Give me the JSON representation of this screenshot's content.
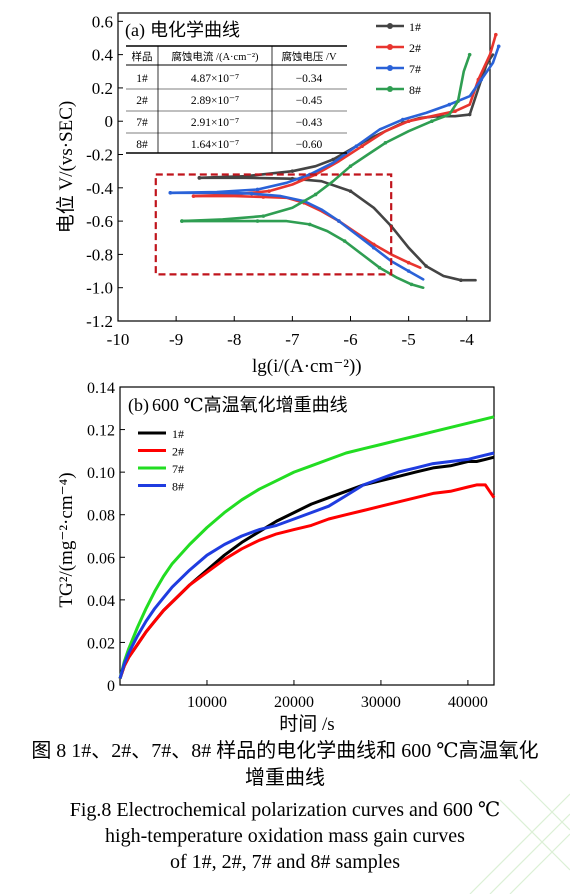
{
  "chart_data": [
    {
      "type": "line",
      "panel": "(a)",
      "title": "电化学曲线",
      "xlabel": "lg(i/(A·cm⁻²))",
      "ylabel": "电位 V/(vs·SEC)",
      "xlim": [
        -10,
        -3.6
      ],
      "ylim": [
        -1.2,
        0.65
      ],
      "xticks": [
        "-10",
        "-9",
        "-8",
        "-7",
        "-6",
        "-5",
        "-4"
      ],
      "yticks": [
        "-1.2",
        "-1.0",
        "-0.8",
        "-0.6",
        "-0.4",
        "-0.2",
        "0",
        "0.2",
        "0.4",
        "0.6"
      ],
      "legend_position": "top-right",
      "highlight_box": {
        "x_range": [
          -9.35,
          -5.3
        ],
        "y_range": [
          -0.92,
          -0.32
        ],
        "style": "red dashed rectangle"
      },
      "series": [
        {
          "name": "1#",
          "color": "#444444",
          "x": [
            -8.6,
            -7.8,
            -7.0,
            -6.5,
            -6.0,
            -5.6,
            -5.3,
            -5.0,
            -4.7,
            -4.4,
            -4.1,
            -3.85
          ],
          "y": [
            -0.34,
            -0.34,
            -0.345,
            -0.36,
            -0.42,
            -0.52,
            -0.63,
            -0.76,
            -0.87,
            -0.93,
            -0.955,
            -0.955
          ]
        },
        {
          "name": "1#",
          "color": "#444444",
          "x": [
            -8.6,
            -7.8,
            -7.0,
            -6.6,
            -6.3,
            -6.0,
            -5.7,
            -5.4,
            -5.1,
            -4.8,
            -4.5,
            -4.2,
            -3.95,
            -3.75,
            -3.65,
            -3.55
          ],
          "y": [
            -0.34,
            -0.33,
            -0.3,
            -0.27,
            -0.23,
            -0.17,
            -0.11,
            -0.06,
            -0.01,
            0.02,
            0.03,
            0.03,
            0.04,
            0.25,
            0.35,
            0.4
          ]
        },
        {
          "name": "2#",
          "color": "#e8352f",
          "x": [
            -8.7,
            -8.0,
            -7.5,
            -7.1,
            -6.8,
            -6.5,
            -6.2,
            -5.9,
            -5.6,
            -5.3,
            -5.0,
            -4.8
          ],
          "y": [
            -0.45,
            -0.45,
            -0.455,
            -0.46,
            -0.49,
            -0.54,
            -0.6,
            -0.67,
            -0.74,
            -0.8,
            -0.85,
            -0.88
          ]
        },
        {
          "name": "2#",
          "color": "#e8352f",
          "x": [
            -8.7,
            -8.0,
            -7.4,
            -7.0,
            -6.6,
            -6.2,
            -5.8,
            -5.4,
            -5.0,
            -4.6,
            -4.2,
            -3.95,
            -3.8,
            -3.6,
            -3.5
          ],
          "y": [
            -0.45,
            -0.44,
            -0.42,
            -0.38,
            -0.32,
            -0.24,
            -0.15,
            -0.06,
            0.0,
            0.03,
            0.06,
            0.1,
            0.25,
            0.4,
            0.52
          ]
        },
        {
          "name": "7#",
          "color": "#2a62d8",
          "x": [
            -9.1,
            -8.3,
            -7.7,
            -7.2,
            -6.8,
            -6.5,
            -6.2,
            -5.9,
            -5.6,
            -5.3,
            -5.0,
            -4.75
          ],
          "y": [
            -0.43,
            -0.43,
            -0.435,
            -0.45,
            -0.48,
            -0.53,
            -0.6,
            -0.68,
            -0.76,
            -0.84,
            -0.9,
            -0.95
          ]
        },
        {
          "name": "7#",
          "color": "#2a62d8",
          "x": [
            -9.1,
            -8.3,
            -7.6,
            -7.1,
            -6.7,
            -6.3,
            -5.9,
            -5.5,
            -5.1,
            -4.7,
            -4.3,
            -3.95,
            -3.75,
            -3.55,
            -3.45
          ],
          "y": [
            -0.43,
            -0.425,
            -0.41,
            -0.37,
            -0.32,
            -0.25,
            -0.15,
            -0.05,
            0.01,
            0.05,
            0.1,
            0.15,
            0.25,
            0.35,
            0.45
          ]
        },
        {
          "name": "8#",
          "color": "#2f9e52",
          "x": [
            -8.9,
            -8.2,
            -7.6,
            -7.1,
            -6.7,
            -6.4,
            -6.1,
            -5.8,
            -5.5,
            -5.2,
            -4.95,
            -4.75
          ],
          "y": [
            -0.6,
            -0.6,
            -0.6,
            -0.6,
            -0.62,
            -0.66,
            -0.72,
            -0.8,
            -0.88,
            -0.94,
            -0.98,
            -1.0
          ]
        },
        {
          "name": "8#",
          "color": "#2f9e52",
          "x": [
            -8.9,
            -8.2,
            -7.5,
            -7.0,
            -6.6,
            -6.3,
            -6.0,
            -5.7,
            -5.4,
            -5.0,
            -4.6,
            -4.3,
            -4.15,
            -4.05,
            -3.95
          ],
          "y": [
            -0.6,
            -0.59,
            -0.57,
            -0.52,
            -0.44,
            -0.36,
            -0.27,
            -0.2,
            -0.13,
            -0.06,
            0.0,
            0.04,
            0.12,
            0.3,
            0.4
          ]
        }
      ],
      "table": {
        "headers": [
          "样品",
          "腐蚀电流 /(A·cm⁻²)",
          "腐蚀电压 /V"
        ],
        "rows": [
          [
            "1#",
            "4.87×10⁻⁷",
            "−0.34"
          ],
          [
            "2#",
            "2.89×10⁻⁷",
            "−0.45"
          ],
          [
            "7#",
            "2.91×10⁻⁷",
            "−0.43"
          ],
          [
            "8#",
            "1.64×10⁻⁷",
            "−0.60"
          ]
        ]
      }
    },
    {
      "type": "line",
      "panel": "(b)",
      "title": "600 ℃高温氧化增重曲线",
      "xlabel": "时间 /s",
      "ylabel": "TG²/(mg⁻²·cm⁻⁴)",
      "xlim": [
        0,
        43000
      ],
      "ylim": [
        0,
        0.14
      ],
      "xticks": [
        "10000",
        "20000",
        "30000",
        "40000"
      ],
      "yticks": [
        "0",
        "0.02",
        "0.04",
        "0.06",
        "0.08",
        "0.10",
        "0.12",
        "0.14"
      ],
      "legend_position": "top-left",
      "x": [
        0,
        500,
        1000,
        2000,
        3000,
        4000,
        5000,
        6000,
        8000,
        10000,
        12000,
        14000,
        16000,
        18000,
        20000,
        22000,
        24000,
        26000,
        28000,
        30000,
        32000,
        34000,
        36000,
        38000,
        40000,
        41000,
        42000,
        43000
      ],
      "series": [
        {
          "name": "1#",
          "color": "#000000",
          "values": [
            0.003,
            0.009,
            0.013,
            0.019,
            0.025,
            0.03,
            0.035,
            0.039,
            0.047,
            0.054,
            0.061,
            0.067,
            0.072,
            0.077,
            0.081,
            0.085,
            0.088,
            0.091,
            0.094,
            0.096,
            0.098,
            0.1,
            0.102,
            0.103,
            0.105,
            0.105,
            0.106,
            0.107
          ]
        },
        {
          "name": "2#",
          "color": "#ff0000",
          "values": [
            0.003,
            0.009,
            0.013,
            0.019,
            0.025,
            0.03,
            0.035,
            0.039,
            0.047,
            0.053,
            0.059,
            0.064,
            0.068,
            0.071,
            0.073,
            0.075,
            0.078,
            0.08,
            0.082,
            0.084,
            0.086,
            0.088,
            0.09,
            0.091,
            0.093,
            0.094,
            0.094,
            0.088
          ]
        },
        {
          "name": "7#",
          "color": "#22dd22",
          "values": [
            0.003,
            0.011,
            0.017,
            0.027,
            0.036,
            0.044,
            0.051,
            0.057,
            0.066,
            0.074,
            0.081,
            0.087,
            0.092,
            0.096,
            0.1,
            0.103,
            0.106,
            0.109,
            0.111,
            0.113,
            0.115,
            0.117,
            0.119,
            0.121,
            0.123,
            0.124,
            0.125,
            0.126
          ]
        },
        {
          "name": "8#",
          "color": "#1f3ce0",
          "values": [
            0.003,
            0.01,
            0.015,
            0.023,
            0.03,
            0.036,
            0.041,
            0.046,
            0.054,
            0.061,
            0.066,
            0.07,
            0.073,
            0.075,
            0.078,
            0.081,
            0.084,
            0.089,
            0.094,
            0.097,
            0.1,
            0.102,
            0.104,
            0.105,
            0.106,
            0.107,
            0.108,
            0.109
          ]
        }
      ]
    }
  ],
  "caption": {
    "cn_line1": "图 8  1#、2#、7#、8# 样品的电化学曲线和 600 ℃高温氧化",
    "cn_line2": "增重曲线",
    "en_line1": "Fig.8  Electrochemical polarization curves and 600 ℃",
    "en_line2": "high-temperature oxidation mass gain curves",
    "en_line3": "of 1#, 2#, 7# and 8# samples"
  }
}
